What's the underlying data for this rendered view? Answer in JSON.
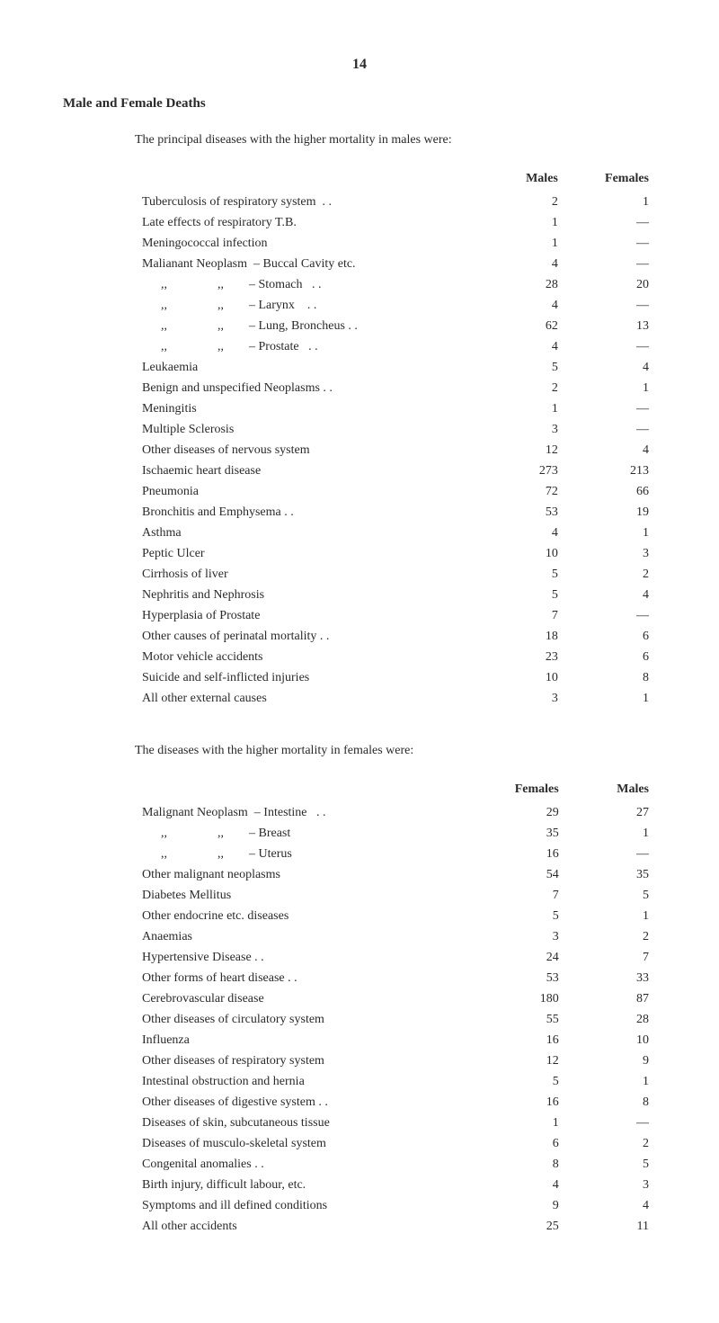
{
  "page_number": "14",
  "title": "Male and Female Deaths",
  "table1": {
    "intro": "The principal diseases with the higher mortality in males were:",
    "headers": {
      "col1": "Males",
      "col2": "Females"
    },
    "rows": [
      {
        "label": "Tuberculosis of respiratory system  . .",
        "v1": "2",
        "v2": "1"
      },
      {
        "label": "Late effects of respiratory T.B.",
        "v1": "1",
        "v2": "—"
      },
      {
        "label": "Meningococcal infection",
        "v1": "1",
        "v2": "—"
      },
      {
        "label": "Malianant Neoplasm  – Buccal Cavity etc.",
        "v1": "4",
        "v2": "—"
      },
      {
        "label": "      ,,                ,,        – Stomach   . .",
        "v1": "28",
        "v2": "20"
      },
      {
        "label": "      ,,                ,,        – Larynx    . .",
        "v1": "4",
        "v2": "—"
      },
      {
        "label": "      ,,                ,,        – Lung, Broncheus . .",
        "v1": "62",
        "v2": "13"
      },
      {
        "label": "      ,,                ,,        – Prostate   . .",
        "v1": "4",
        "v2": "—"
      },
      {
        "label": "Leukaemia",
        "v1": "5",
        "v2": "4"
      },
      {
        "label": "Benign and unspecified Neoplasms . .",
        "v1": "2",
        "v2": "1"
      },
      {
        "label": "Meningitis",
        "v1": "1",
        "v2": "—"
      },
      {
        "label": "Multiple Sclerosis",
        "v1": "3",
        "v2": "—"
      },
      {
        "label": "Other diseases of nervous system",
        "v1": "12",
        "v2": "4"
      },
      {
        "label": "Ischaemic heart disease",
        "v1": "273",
        "v2": "213"
      },
      {
        "label": "Pneumonia",
        "v1": "72",
        "v2": "66"
      },
      {
        "label": "Bronchitis and Emphysema . .",
        "v1": "53",
        "v2": "19"
      },
      {
        "label": "Asthma",
        "v1": "4",
        "v2": "1"
      },
      {
        "label": "Peptic Ulcer",
        "v1": "10",
        "v2": "3"
      },
      {
        "label": "Cirrhosis of liver",
        "v1": "5",
        "v2": "2"
      },
      {
        "label": "Nephritis and Nephrosis",
        "v1": "5",
        "v2": "4"
      },
      {
        "label": "Hyperplasia of Prostate",
        "v1": "7",
        "v2": "—"
      },
      {
        "label": "Other causes of perinatal mortality . .",
        "v1": "18",
        "v2": "6"
      },
      {
        "label": "Motor vehicle accidents",
        "v1": "23",
        "v2": "6"
      },
      {
        "label": "Suicide and self-inflicted injuries",
        "v1": "10",
        "v2": "8"
      },
      {
        "label": "All other external causes",
        "v1": "3",
        "v2": "1"
      }
    ]
  },
  "table2": {
    "intro": "The diseases with the higher mortality in females were:",
    "headers": {
      "col1": "Females",
      "col2": "Males"
    },
    "rows": [
      {
        "label": "Malignant Neoplasm  – Intestine   . .",
        "v1": "29",
        "v2": "27"
      },
      {
        "label": "      ,,                ,,        – Breast",
        "v1": "35",
        "v2": "1"
      },
      {
        "label": "      ,,                ,,        – Uterus",
        "v1": "16",
        "v2": "—"
      },
      {
        "label": "Other malignant neoplasms",
        "v1": "54",
        "v2": "35"
      },
      {
        "label": "Diabetes Mellitus",
        "v1": "7",
        "v2": "5"
      },
      {
        "label": "Other endocrine etc. diseases",
        "v1": "5",
        "v2": "1"
      },
      {
        "label": "Anaemias",
        "v1": "3",
        "v2": "2"
      },
      {
        "label": "Hypertensive Disease . .",
        "v1": "24",
        "v2": "7"
      },
      {
        "label": "Other forms of heart disease . .",
        "v1": "53",
        "v2": "33"
      },
      {
        "label": "Cerebrovascular disease",
        "v1": "180",
        "v2": "87"
      },
      {
        "label": "Other diseases of circulatory system",
        "v1": "55",
        "v2": "28"
      },
      {
        "label": "Influenza",
        "v1": "16",
        "v2": "10"
      },
      {
        "label": "Other diseases of respiratory system",
        "v1": "12",
        "v2": "9"
      },
      {
        "label": "Intestinal obstruction and hernia",
        "v1": "5",
        "v2": "1"
      },
      {
        "label": "Other diseases of digestive system . .",
        "v1": "16",
        "v2": "8"
      },
      {
        "label": "Diseases of skin, subcutaneous tissue",
        "v1": "1",
        "v2": "—"
      },
      {
        "label": "Diseases of musculo-skeletal system",
        "v1": "6",
        "v2": "2"
      },
      {
        "label": "Congenital anomalies . .",
        "v1": "8",
        "v2": "5"
      },
      {
        "label": "Birth injury, difficult labour, etc.",
        "v1": "4",
        "v2": "3"
      },
      {
        "label": "Symptoms and ill defined conditions",
        "v1": "9",
        "v2": "4"
      },
      {
        "label": "All other accidents",
        "v1": "25",
        "v2": "11"
      }
    ]
  }
}
